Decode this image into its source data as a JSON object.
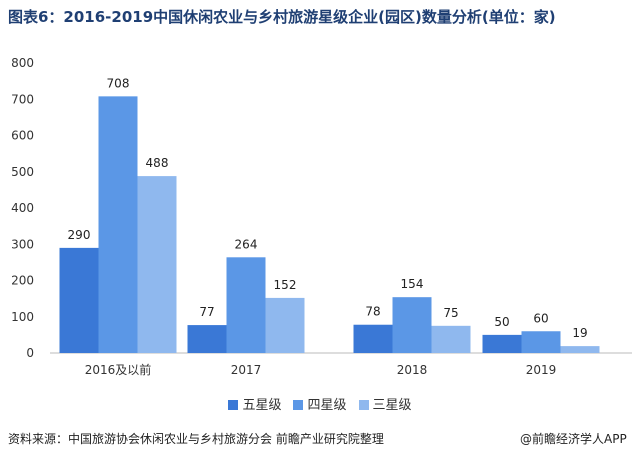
{
  "title": "图表6：2016-2019中国休闲农业与乡村旅游星级企业(园区)数量分析(单位：家)",
  "source": "资料来源：中国旅游协会休闲农业与乡村旅游分会 前瞻产业研究院整理",
  "credit": "@前瞻经济学人APP",
  "colors": {
    "five_star": "#3a78d6",
    "four_star": "#5b97e6",
    "three_star": "#8fb8ee"
  },
  "chart_data": {
    "type": "bar",
    "categories": [
      "2016及以前",
      "2017",
      "2018",
      "2019"
    ],
    "series": [
      {
        "name": "五星级",
        "values": [
          290,
          77,
          78,
          50
        ]
      },
      {
        "name": "四星级",
        "values": [
          708,
          264,
          154,
          60
        ]
      },
      {
        "name": "三星级",
        "values": [
          488,
          152,
          75,
          19
        ]
      }
    ],
    "ylim": [
      0,
      800
    ],
    "yticks": [
      0,
      100,
      200,
      300,
      400,
      500,
      600,
      700,
      800
    ],
    "legend_position": "bottom",
    "grid": false
  }
}
